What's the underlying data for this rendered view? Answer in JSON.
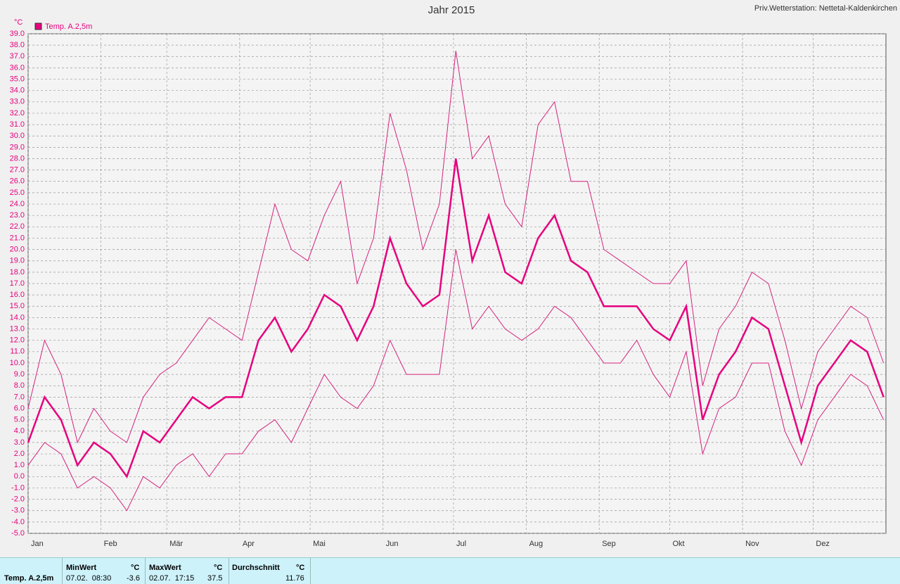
{
  "chart_data": {
    "type": "line",
    "title": "Jahr 2015",
    "station": "Priv.Wetterstation: Nettetal-Kaldenkirchen",
    "y_unit": "°C",
    "x": [
      1,
      8,
      15,
      22,
      29,
      36,
      43,
      50,
      57,
      64,
      71,
      78,
      85,
      92,
      99,
      106,
      113,
      120,
      127,
      134,
      141,
      148,
      155,
      162,
      169,
      176,
      183,
      190,
      197,
      204,
      211,
      218,
      225,
      232,
      239,
      246,
      253,
      260,
      267,
      274,
      281,
      288,
      295,
      302,
      309,
      316,
      323,
      330,
      337,
      344,
      351,
      358,
      365
    ],
    "series": [
      {
        "name": "Temp. A.2,5m",
        "color": "#e6007e",
        "values": [
          3,
          7,
          5,
          1,
          3,
          2,
          0,
          4,
          3,
          5,
          7,
          6,
          7,
          7,
          12,
          14,
          11,
          13,
          16,
          15,
          12,
          15,
          21,
          17,
          15,
          16,
          28,
          19,
          23,
          18,
          17,
          21,
          23,
          19,
          18,
          15,
          15,
          15,
          13,
          12,
          15,
          5,
          9,
          11,
          14,
          13,
          8,
          3,
          8,
          10,
          12,
          11,
          7
        ]
      },
      {
        "color": "#d4247e",
        "values": [
          6,
          12,
          9,
          3,
          6,
          4,
          3,
          7,
          9,
          10,
          12,
          14,
          13,
          12,
          18,
          24,
          20,
          19,
          23,
          26,
          17,
          21,
          32,
          27,
          20,
          24,
          37.5,
          28,
          30,
          24,
          22,
          31,
          33,
          26,
          26,
          20,
          19,
          18,
          17,
          17,
          19,
          8,
          13,
          15,
          18,
          17,
          12,
          6,
          11,
          13,
          15,
          14,
          10
        ]
      },
      {
        "color": "#d4247e",
        "values": [
          1,
          3,
          2,
          -1,
          0,
          -1,
          -3,
          0,
          -1,
          1,
          2,
          0,
          2,
          2,
          4,
          5,
          3,
          6,
          9,
          7,
          6,
          8,
          12,
          9,
          9,
          9,
          20,
          13,
          15,
          13,
          12,
          13,
          15,
          14,
          12,
          10,
          10,
          12,
          9,
          7,
          11,
          2,
          6,
          7,
          10,
          10,
          4,
          1,
          5,
          7,
          9,
          8,
          5
        ]
      }
    ],
    "xlim": [
      1,
      366
    ],
    "xticks": [
      {
        "value": 1,
        "label": "Jan"
      },
      {
        "value": 32,
        "label": "Feb"
      },
      {
        "value": 60,
        "label": "Mär"
      },
      {
        "value": 91,
        "label": "Apr"
      },
      {
        "value": 121,
        "label": "Mai"
      },
      {
        "value": 152,
        "label": "Jun"
      },
      {
        "value": 182,
        "label": "Jul"
      },
      {
        "value": 213,
        "label": "Aug"
      },
      {
        "value": 244,
        "label": "Sep"
      },
      {
        "value": 274,
        "label": "Okt"
      },
      {
        "value": 305,
        "label": "Nov"
      },
      {
        "value": 335,
        "label": "Dez"
      }
    ],
    "ylim": [
      -5,
      39
    ],
    "yticks": [
      {
        "value": 39,
        "label": "39.0"
      },
      {
        "value": 38,
        "label": "38.0"
      },
      {
        "value": 37,
        "label": "37.0"
      },
      {
        "value": 36,
        "label": "36.0"
      },
      {
        "value": 35,
        "label": "35.0"
      },
      {
        "value": 34,
        "label": "34.0"
      },
      {
        "value": 33,
        "label": "33.0"
      },
      {
        "value": 32,
        "label": "32.0"
      },
      {
        "value": 31,
        "label": "31.0"
      },
      {
        "value": 30,
        "label": "30.0"
      },
      {
        "value": 29,
        "label": "29.0"
      },
      {
        "value": 28,
        "label": "28.0"
      },
      {
        "value": 27,
        "label": "27.0"
      },
      {
        "value": 26,
        "label": "26.0"
      },
      {
        "value": 25,
        "label": "25.0"
      },
      {
        "value": 24,
        "label": "24.0"
      },
      {
        "value": 23,
        "label": "23.0"
      },
      {
        "value": 22,
        "label": "22.0"
      },
      {
        "value": 21,
        "label": "21.0"
      },
      {
        "value": 20,
        "label": "20.0"
      },
      {
        "value": 19,
        "label": "19.0"
      },
      {
        "value": 18,
        "label": "18.0"
      },
      {
        "value": 17,
        "label": "17.0"
      },
      {
        "value": 16,
        "label": "16.0"
      },
      {
        "value": 15,
        "label": "15.0"
      },
      {
        "value": 14,
        "label": "14.0"
      },
      {
        "value": 13,
        "label": "13.0"
      },
      {
        "value": 12,
        "label": "12.0"
      },
      {
        "value": 11,
        "label": "11.0"
      },
      {
        "value": 10,
        "label": "10.0"
      },
      {
        "value": 9,
        "label": "9.0"
      },
      {
        "value": 8,
        "label": "8.0"
      },
      {
        "value": 7,
        "label": "7.0"
      },
      {
        "value": 6,
        "label": "6.0"
      },
      {
        "value": 5,
        "label": "5.0"
      },
      {
        "value": 4,
        "label": "4.0"
      },
      {
        "value": 3,
        "label": "3.0"
      },
      {
        "value": 2,
        "label": "2.0"
      },
      {
        "value": 1,
        "label": "1.0"
      },
      {
        "value": 0,
        "label": "0.0"
      },
      {
        "value": -1,
        "label": "-1.0"
      },
      {
        "value": -2,
        "label": "-2.0"
      },
      {
        "value": -3,
        "label": "-3.0"
      },
      {
        "value": -4,
        "label": "-4.0"
      },
      {
        "value": -5,
        "label": "-5.0"
      }
    ],
    "grid": true
  },
  "summary": {
    "row_label": "Temp. A.2,5m",
    "min_header": "MinWert",
    "min_unit": "°C",
    "min_time": "07.02.  08:30",
    "min": -3.6,
    "max_header": "MaxWert",
    "max_unit": "°C",
    "max_time": "02.07.  17:15",
    "max": 37.5,
    "avg_header": "Durchschnitt",
    "avg_unit": "°C",
    "avg": 11.76
  }
}
